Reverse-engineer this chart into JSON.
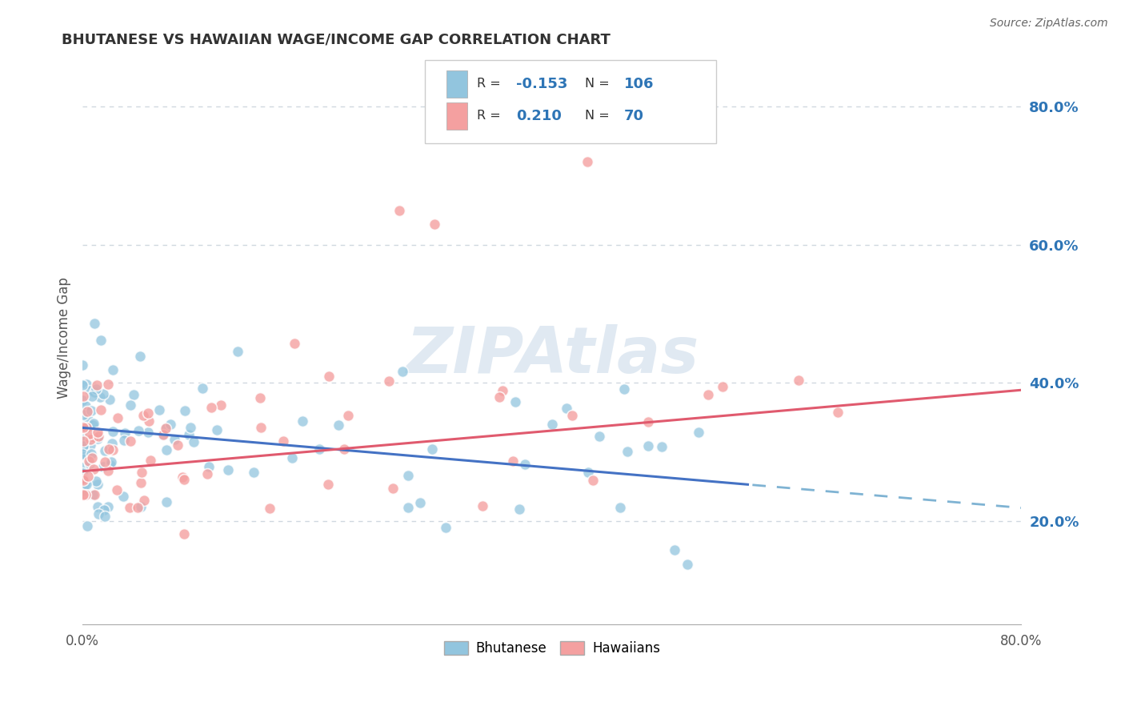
{
  "title": "BHUTANESE VS HAWAIIAN WAGE/INCOME GAP CORRELATION CHART",
  "source": "Source: ZipAtlas.com",
  "ylabel": "Wage/Income Gap",
  "right_yticks": [
    0.2,
    0.4,
    0.6,
    0.8
  ],
  "right_yticklabels": [
    "20.0%",
    "40.0%",
    "60.0%",
    "80.0%"
  ],
  "xlim": [
    0.0,
    0.8
  ],
  "ylim": [
    0.05,
    0.88
  ],
  "bhutanese_color": "#92c5de",
  "hawaiian_color": "#f4a0a0",
  "trend_blue_solid": "#4472c4",
  "trend_blue_dash": "#7fb3d3",
  "trend_pink": "#e05a6e",
  "R_bhutanese": -0.153,
  "N_bhutanese": 106,
  "R_hawaiian": 0.21,
  "N_hawaiian": 70,
  "watermark_text": "ZIPAtlas",
  "watermark_color": "#c8d8e8",
  "background_color": "#ffffff",
  "grid_color": "#d0d8e0",
  "legend_r_color": "#2e75b6",
  "legend_n_color": "#2e75b6",
  "xtick_labels_show": [
    "0.0%",
    "",
    "",
    "",
    "",
    "",
    "",
    "",
    "80.0%"
  ],
  "xtick_vals": [
    0.0,
    0.1,
    0.2,
    0.3,
    0.4,
    0.5,
    0.6,
    0.7,
    0.8
  ]
}
